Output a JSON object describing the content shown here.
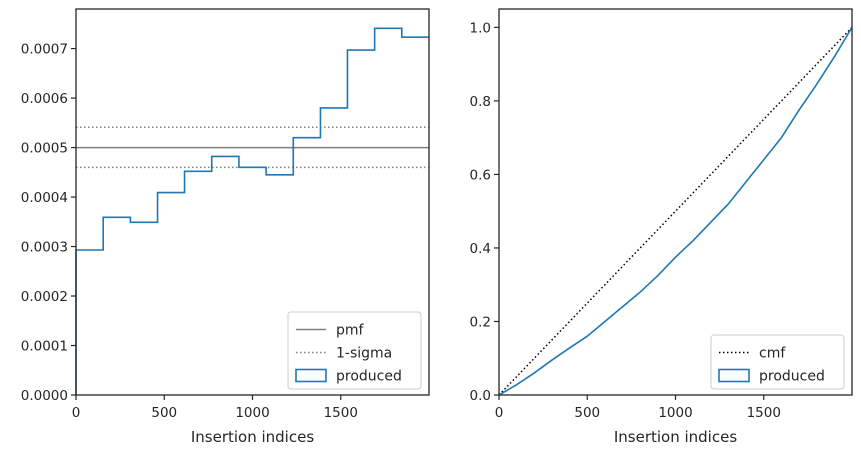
{
  "chart_data": [
    {
      "type": "line",
      "subtype": "step-histogram",
      "xlabel": "Insertion indices",
      "ylabel": "",
      "xlim": [
        0,
        2000
      ],
      "ylim": [
        0,
        0.00078
      ],
      "xticks": [
        0,
        500,
        1000,
        1500
      ],
      "xtick_labels": [
        "0",
        "500",
        "1000",
        "1500"
      ],
      "yticks": [
        0,
        0.0001,
        0.0002,
        0.0003,
        0.0004,
        0.0005,
        0.0006,
        0.0007
      ],
      "ytick_labels": [
        "0.0000",
        "0.0001",
        "0.0002",
        "0.0003",
        "0.0004",
        "0.0005",
        "0.0006",
        "0.0007"
      ],
      "grid": false,
      "legend_position": "lower right",
      "reference_lines": [
        {
          "name": "pmf",
          "value": 0.0005,
          "style": "solid",
          "color": "#808080"
        },
        {
          "name": "1-sigma",
          "values": [
            0.00046,
            0.000541
          ],
          "style": "dotted",
          "color": "#808080"
        }
      ],
      "series": [
        {
          "name": "produced",
          "color": "#1f77b4",
          "bin_edges": [
            0,
            154,
            308,
            462,
            615,
            769,
            923,
            1077,
            1231,
            1385,
            1538,
            1692,
            1846,
            2000
          ],
          "values": [
            0.000293,
            0.000359,
            0.000349,
            0.000409,
            0.000452,
            0.000482,
            0.00046,
            0.000445,
            0.00052,
            0.00058,
            0.000697,
            0.000741,
            0.000723
          ]
        }
      ],
      "legend": [
        "pmf",
        "1-sigma",
        "produced"
      ]
    },
    {
      "type": "line",
      "xlabel": "Insertion indices",
      "ylabel": "",
      "xlim": [
        0,
        2000
      ],
      "ylim": [
        0,
        1.05
      ],
      "xticks": [
        0,
        500,
        1000,
        1500
      ],
      "xtick_labels": [
        "0",
        "500",
        "1000",
        "1500"
      ],
      "yticks": [
        0,
        0.2,
        0.4,
        0.6,
        0.8,
        1.0
      ],
      "ytick_labels": [
        "0.0",
        "0.2",
        "0.4",
        "0.6",
        "0.8",
        "1.0"
      ],
      "grid": false,
      "legend_position": "lower right",
      "series": [
        {
          "name": "cmf",
          "style": "dotted",
          "color": "#000000",
          "x": [
            0,
            2000
          ],
          "y": [
            0,
            1.0
          ]
        },
        {
          "name": "produced",
          "color": "#1f77b4",
          "x": [
            0,
            100,
            200,
            300,
            400,
            500,
            600,
            700,
            800,
            900,
            1000,
            1100,
            1200,
            1300,
            1400,
            1500,
            1600,
            1700,
            1800,
            1900,
            2000
          ],
          "y": [
            0,
            0.028,
            0.06,
            0.095,
            0.128,
            0.16,
            0.2,
            0.24,
            0.28,
            0.325,
            0.375,
            0.42,
            0.47,
            0.52,
            0.58,
            0.64,
            0.7,
            0.775,
            0.845,
            0.92,
            1.0
          ]
        }
      ],
      "legend": [
        "cmf",
        "produced"
      ]
    }
  ]
}
